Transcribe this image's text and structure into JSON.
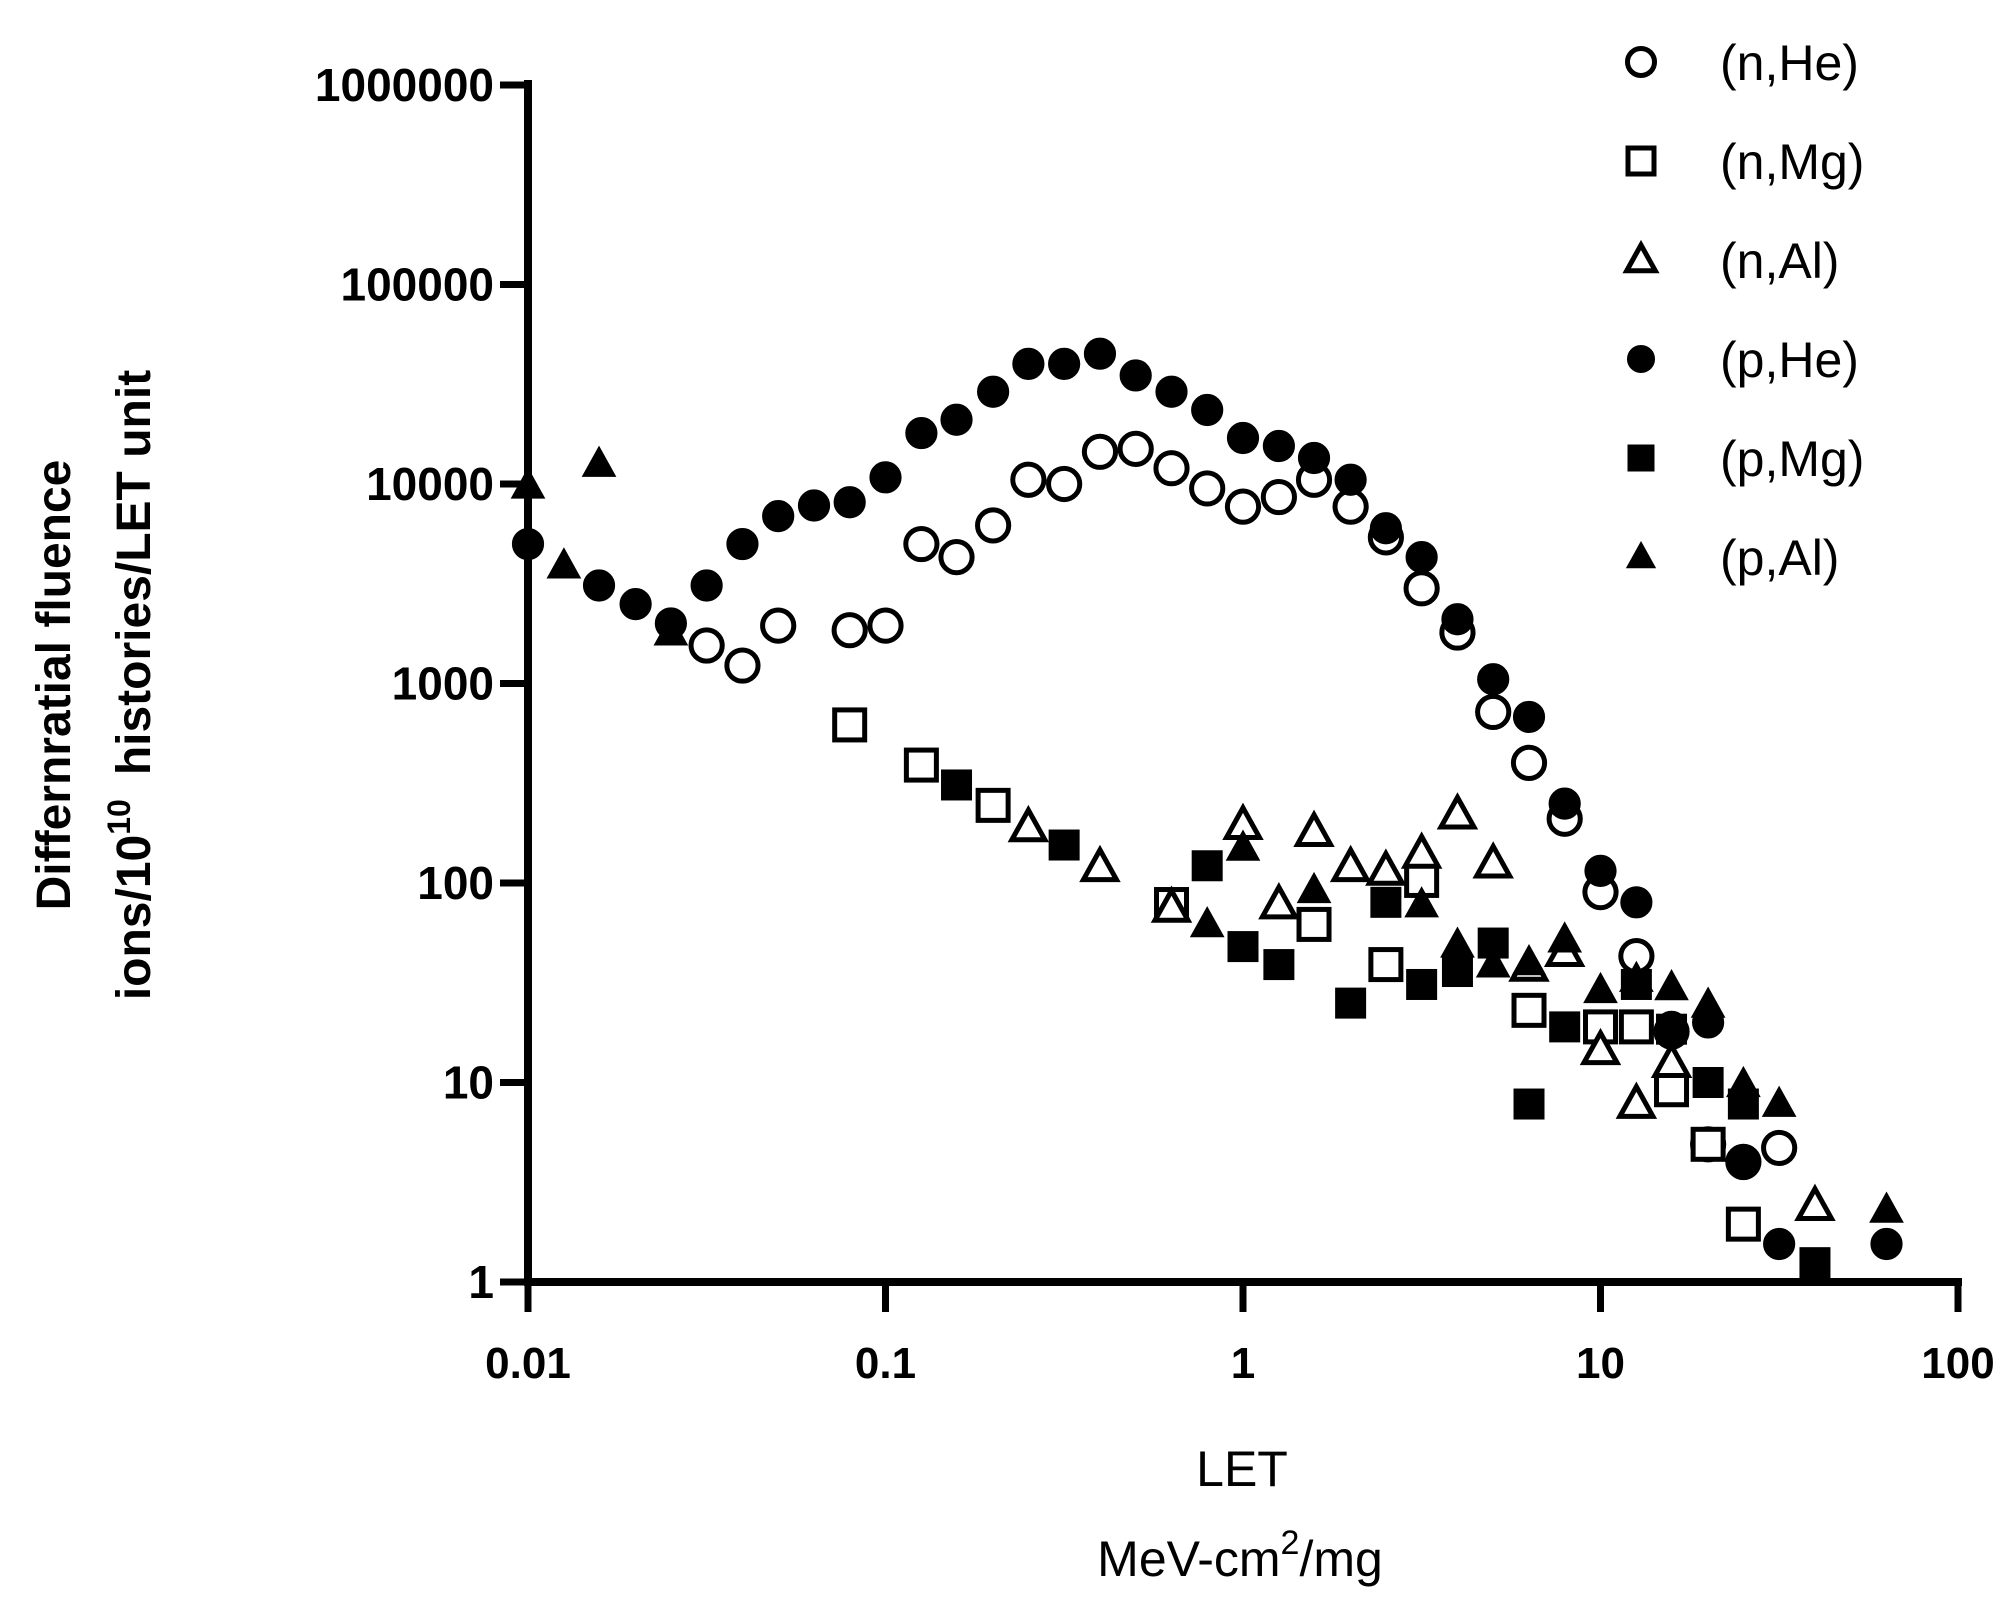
{
  "chart_data": {
    "type": "scatter",
    "title": "",
    "xscale": "log",
    "yscale": "log",
    "xlim": [
      0.01,
      100
    ],
    "ylim": [
      1,
      1000000
    ],
    "x_ticks": [
      "0.01",
      "0.1",
      "1",
      "10",
      "100"
    ],
    "y_ticks": [
      "1",
      "10",
      "100",
      "1000",
      "10000",
      "100000",
      "1000000"
    ],
    "xlabel_line1": "LET",
    "xlabel_line2_pre": "MeV-cm",
    "xlabel_line2_sup": "2",
    "xlabel_line2_post": "/mg",
    "ylabel_line1": "Differnratial fluence",
    "ylabel_line2_pre": "ions/10",
    "ylabel_line2_sup": "10",
    "ylabel_line2_post": "histories/LET unit",
    "legend_position": "top-right",
    "series": [
      {
        "name": "(n,He)",
        "marker": "circle-open",
        "points": [
          [
            0.0316,
            1550
          ],
          [
            0.0398,
            1230
          ],
          [
            0.0501,
            1950
          ],
          [
            0.0794,
            1850
          ],
          [
            0.1,
            1950
          ],
          [
            0.126,
            5000
          ],
          [
            0.158,
            4300
          ],
          [
            0.2,
            6200
          ],
          [
            0.251,
            10500
          ],
          [
            0.316,
            10000
          ],
          [
            0.398,
            14500
          ],
          [
            0.501,
            15000
          ],
          [
            0.631,
            12000
          ],
          [
            0.794,
            9500
          ],
          [
            1.0,
            7700
          ],
          [
            1.26,
            8600
          ],
          [
            1.58,
            10500
          ],
          [
            2.0,
            7700
          ],
          [
            2.51,
            5400
          ],
          [
            3.16,
            3000
          ],
          [
            3.98,
            1800
          ],
          [
            5.01,
            720
          ],
          [
            6.31,
            400
          ],
          [
            7.94,
            210
          ],
          [
            10.0,
            90
          ],
          [
            12.6,
            43
          ],
          [
            15.8,
            18
          ],
          [
            20.0,
            4.9
          ],
          [
            25.1,
            4.0
          ],
          [
            31.6,
            4.7
          ]
        ]
      },
      {
        "name": "(n,Mg)",
        "marker": "square-open",
        "points": [
          [
            0.0794,
            620
          ],
          [
            0.126,
            390
          ],
          [
            0.2,
            245
          ],
          [
            0.631,
            78
          ],
          [
            1.58,
            62
          ],
          [
            2.51,
            39
          ],
          [
            3.16,
            103
          ],
          [
            6.31,
            23
          ],
          [
            10.0,
            19
          ],
          [
            12.6,
            19
          ],
          [
            15.8,
            9.2
          ],
          [
            20.0,
            4.9
          ],
          [
            25.1,
            1.95
          ]
        ]
      },
      {
        "name": "(n,Al)",
        "marker": "triangle-open",
        "points": [
          [
            0.251,
            190
          ],
          [
            0.398,
            120
          ],
          [
            0.631,
            75
          ],
          [
            1.0,
            195
          ],
          [
            1.26,
            78
          ],
          [
            1.58,
            180
          ],
          [
            2.0,
            120
          ],
          [
            2.51,
            115
          ],
          [
            3.16,
            140
          ],
          [
            3.98,
            220
          ],
          [
            5.01,
            125
          ],
          [
            6.31,
            38
          ],
          [
            7.94,
            45
          ],
          [
            10.0,
            14.5
          ],
          [
            12.6,
            7.8
          ],
          [
            15.8,
            12.5
          ],
          [
            39.8,
            2.4
          ]
        ]
      },
      {
        "name": "(p,He)",
        "marker": "circle-filled",
        "points": [
          [
            0.01,
            5000
          ],
          [
            0.0158,
            3100
          ],
          [
            0.02,
            2500
          ],
          [
            0.0251,
            2000
          ],
          [
            0.0316,
            3100
          ],
          [
            0.0398,
            5000
          ],
          [
            0.0501,
            6900
          ],
          [
            0.0631,
            7800
          ],
          [
            0.0794,
            8100
          ],
          [
            0.1,
            10800
          ],
          [
            0.126,
            18000
          ],
          [
            0.158,
            21000
          ],
          [
            0.2,
            29000
          ],
          [
            0.251,
            40000
          ],
          [
            0.316,
            40000
          ],
          [
            0.398,
            45000
          ],
          [
            0.501,
            35000
          ],
          [
            0.631,
            29000
          ],
          [
            0.794,
            23500
          ],
          [
            1.0,
            17000
          ],
          [
            1.26,
            15500
          ],
          [
            1.58,
            13500
          ],
          [
            2.0,
            10500
          ],
          [
            2.51,
            6000
          ],
          [
            3.16,
            4300
          ],
          [
            3.98,
            2100
          ],
          [
            5.01,
            1050
          ],
          [
            6.31,
            680
          ],
          [
            7.94,
            250
          ],
          [
            10.0,
            115
          ],
          [
            12.6,
            80
          ],
          [
            15.8,
            19
          ],
          [
            20.0,
            20
          ],
          [
            25.1,
            3.9
          ],
          [
            31.6,
            1.55
          ],
          [
            63.1,
            1.55
          ]
        ]
      },
      {
        "name": "(p,Mg)",
        "marker": "square-filled",
        "points": [
          [
            0.158,
            310
          ],
          [
            0.316,
            155
          ],
          [
            0.794,
            122
          ],
          [
            1.0,
            48
          ],
          [
            1.26,
            39
          ],
          [
            2.0,
            25
          ],
          [
            2.51,
            80
          ],
          [
            3.16,
            31
          ],
          [
            3.98,
            36
          ],
          [
            5.01,
            50
          ],
          [
            6.31,
            7.8
          ],
          [
            7.94,
            19
          ],
          [
            12.6,
            31
          ],
          [
            15.8,
            18.5
          ],
          [
            20.0,
            10
          ],
          [
            25.1,
            7.8
          ],
          [
            39.8,
            1.25
          ]
        ]
      },
      {
        "name": "(p,Al)",
        "marker": "triangle-filled",
        "points": [
          [
            0.01,
            9800
          ],
          [
            0.0126,
            3900
          ],
          [
            0.0158,
            12600
          ],
          [
            0.0251,
            1800
          ],
          [
            0.794,
            62
          ],
          [
            1.0,
            150
          ],
          [
            1.58,
            92
          ],
          [
            3.16,
            78
          ],
          [
            3.98,
            49
          ],
          [
            5.01,
            39
          ],
          [
            6.31,
            40
          ],
          [
            7.94,
            52
          ],
          [
            10.0,
            29
          ],
          [
            12.6,
            33
          ],
          [
            15.8,
            30
          ],
          [
            20.0,
            24.5
          ],
          [
            25.1,
            9.8
          ],
          [
            31.6,
            7.8
          ],
          [
            63.1,
            2.3
          ]
        ]
      }
    ]
  }
}
